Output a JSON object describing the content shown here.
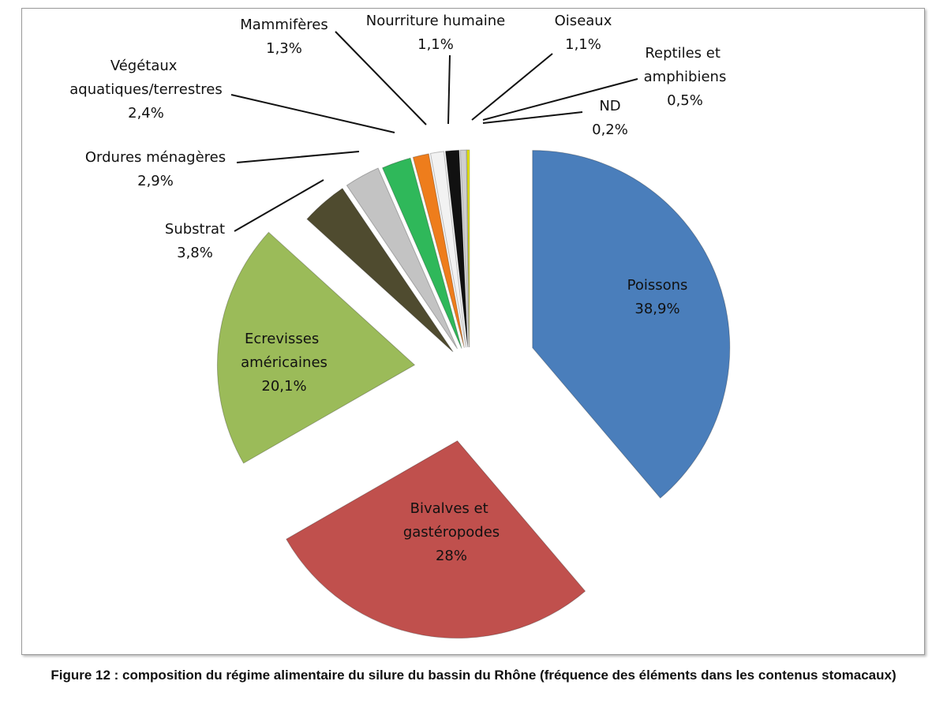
{
  "chart_data": {
    "type": "pie",
    "categories": [
      "Poissons",
      "Bivalves et gastéropodes",
      "Ecrevisses américaines",
      "Substrat",
      "Ordures ménagères",
      "Végétaux aquatiques/terrestres",
      "Mammifères",
      "Nourriture humaine",
      "Oiseaux",
      "Reptiles et amphibiens",
      "ND"
    ],
    "values": [
      38.9,
      28,
      20.1,
      3.8,
      2.9,
      2.4,
      1.3,
      1.1,
      1.1,
      0.5,
      0.2
    ],
    "value_labels": [
      "38,9%",
      "28%",
      "20,1%",
      "3,8%",
      "2,9%",
      "2,4%",
      "1,3%",
      "1,1%",
      "1,1%",
      "0,5%",
      "0,2%"
    ],
    "colors": [
      "#4a7ebb",
      "#c0504d",
      "#9bbb59",
      "#4f4b2f",
      "#c3c3c3",
      "#2fb85a",
      "#ee7d1c",
      "#f2f2f2",
      "#111111",
      "#cfcfcf",
      "#e6e600"
    ],
    "caption": "Figure 12 : composition du régime alimentaire du silure du bassin du Rhône (fréquence des éléments dans les contenus stomacaux)"
  }
}
